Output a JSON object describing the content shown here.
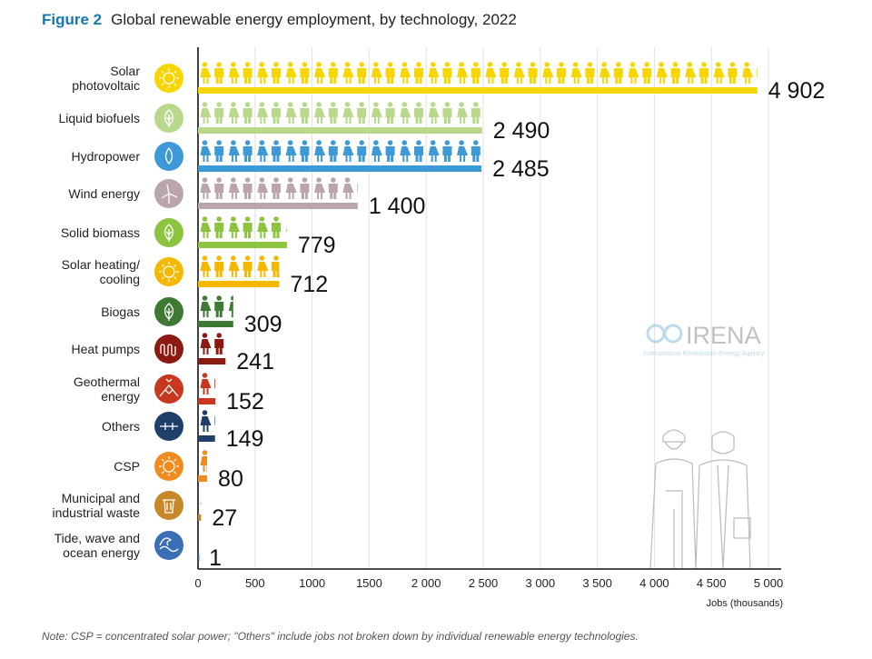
{
  "title": {
    "figure": "Figure 2",
    "text": "Global renewable energy employment, by technology, 2022"
  },
  "note": "Note: CSP = concentrated solar power; \"Others\" include jobs not broken down by individual renewable energy technologies.",
  "logo": {
    "name": "IRENA",
    "tagline": "International Renewable Energy Agency"
  },
  "chart_data": {
    "type": "bar",
    "orientation": "horizontal",
    "title": "Global renewable energy employment, by technology, 2022",
    "xlabel": "Jobs (thousands)",
    "xlim": [
      0,
      5000
    ],
    "xticks": [
      "0",
      "500",
      "1000",
      "1500",
      "2 000",
      "2 500",
      "3 000",
      "3 500",
      "4 000",
      "4 500",
      "5 000"
    ],
    "grid": true,
    "categories": [
      {
        "label": [
          "Solar",
          "photovoltaic"
        ],
        "value": 4902,
        "value_label": "4 902",
        "color": "#f7d600",
        "icon": "sun-icon"
      },
      {
        "label": [
          "Liquid biofuels"
        ],
        "value": 2490,
        "value_label": "2 490",
        "color": "#b8d98b",
        "icon": "leaf-drop-icon"
      },
      {
        "label": [
          "Hydropower"
        ],
        "value": 2485,
        "value_label": "2 485",
        "color": "#3d9ad6",
        "icon": "water-drop-icon"
      },
      {
        "label": [
          "Wind energy"
        ],
        "value": 1400,
        "value_label": "1 400",
        "color": "#b9a5aa",
        "icon": "wind-turbine-icon"
      },
      {
        "label": [
          "Solid biomass"
        ],
        "value": 779,
        "value_label": "779",
        "color": "#8cc43f",
        "icon": "leaf-icon"
      },
      {
        "label": [
          "Solar heating/",
          "cooling"
        ],
        "value": 712,
        "value_label": "712",
        "color": "#f5b800",
        "icon": "sun-icon"
      },
      {
        "label": [
          "Biogas"
        ],
        "value": 309,
        "value_label": "309",
        "color": "#3e7a34",
        "icon": "leaf-icon"
      },
      {
        "label": [
          "Heat pumps"
        ],
        "value": 241,
        "value_label": "241",
        "color": "#8b1a12",
        "icon": "coil-icon"
      },
      {
        "label": [
          "Geothermal",
          "energy"
        ],
        "value": 152,
        "value_label": "152",
        "color": "#c8381e",
        "icon": "volcano-icon"
      },
      {
        "label": [
          "Others"
        ],
        "value": 149,
        "value_label": "149",
        "color": "#1f3f6b",
        "icon": "plus-minus-icon"
      },
      {
        "label": [
          "CSP"
        ],
        "value": 80,
        "value_label": "80",
        "color": "#f08c1e",
        "icon": "sun-icon"
      },
      {
        "label": [
          "Municipal and",
          "industrial waste"
        ],
        "value": 27,
        "value_label": "27",
        "color": "#c8882a",
        "icon": "trash-bin-icon"
      },
      {
        "label": [
          "Tide, wave and",
          "ocean energy"
        ],
        "value": 1,
        "value_label": "1",
        "color": "#3a6fb5",
        "icon": "wave-icon"
      }
    ]
  }
}
